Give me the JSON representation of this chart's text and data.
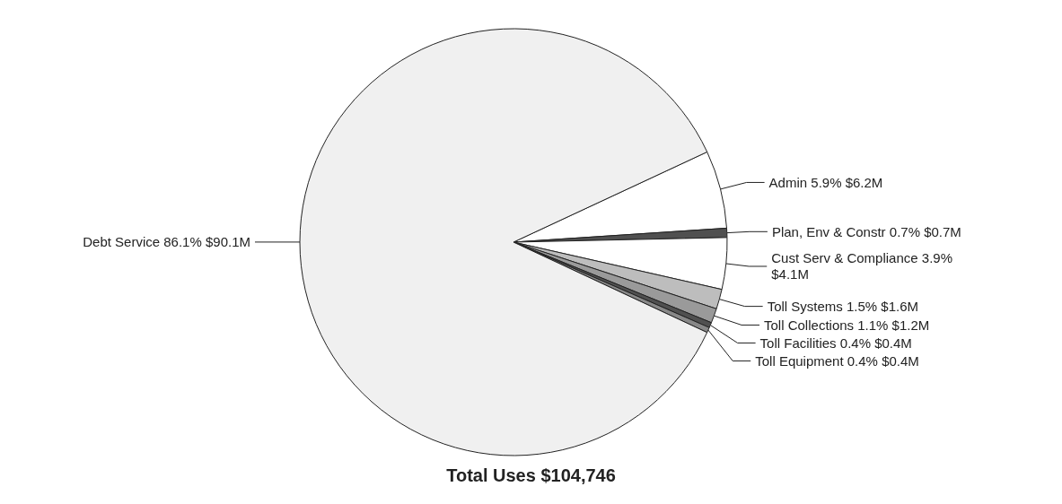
{
  "chart_data": {
    "type": "pie",
    "title": "Total Uses $104,746",
    "categories": [
      "Admin",
      "Plan, Env & Constr",
      "Cust Serv & Compliance",
      "Toll Systems",
      "Toll Collections",
      "Toll Facilities",
      "Toll Equipment",
      "Debt Service"
    ],
    "values": [
      5.9,
      0.7,
      3.9,
      1.5,
      1.1,
      0.4,
      0.4,
      86.1
    ],
    "value_labels": [
      "5.9% $6.2M",
      "0.7% $0.7M",
      "3.9% $4.1M",
      "1.5% $1.6M",
      "1.1% $1.2M",
      "0.4% $0.4M",
      "0.4% $0.4M",
      "86.1% $90.1M"
    ],
    "colors": [
      "#ffffff",
      "#505050",
      "#ffffff",
      "#bdbdbd",
      "#9a9a9a",
      "#505050",
      "#888888",
      "#f0f0f0"
    ],
    "legend": false
  }
}
